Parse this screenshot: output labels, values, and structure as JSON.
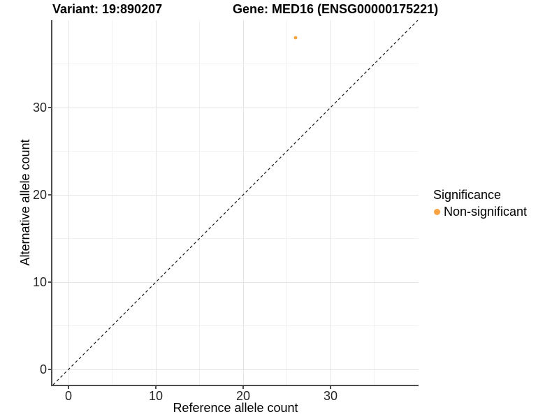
{
  "header": {
    "title_left": "Variant: 19:890207",
    "title_right": "Gene: MED16 (ENSG00000175221)"
  },
  "chart_data": {
    "type": "scatter",
    "xlabel": "Reference allele count",
    "ylabel": "Alternative allele count",
    "xlim": [
      -1.84,
      40.08
    ],
    "ylim": [
      -1.76,
      40.0
    ],
    "x_ticks": [
      0,
      10,
      20,
      30
    ],
    "y_ticks": [
      0,
      10,
      20,
      30
    ],
    "x_minor_ticks": [
      5,
      15,
      25,
      35
    ],
    "y_minor_ticks": [
      5,
      15,
      25,
      35
    ],
    "grid": true,
    "series": [
      {
        "name": "Non-significant",
        "color": "#F9A242",
        "points": [
          {
            "x": 26,
            "y": 38
          }
        ]
      }
    ],
    "reference_line": {
      "type": "identity",
      "slope": 1,
      "intercept": 0,
      "style": "dashed",
      "color": "#1A1A1A"
    },
    "legend": {
      "title": "Significance",
      "position": "right",
      "items": [
        {
          "label": "Non-significant",
          "color": "#F9A242"
        }
      ]
    }
  },
  "colors": {
    "background": "#FFFFFF",
    "axis_line": "#4D4D4D",
    "grid_major": "#E4E4E4",
    "grid_minor": "#F2F2F2",
    "tick_text": "#262626",
    "point_orange": "#F9A242"
  }
}
